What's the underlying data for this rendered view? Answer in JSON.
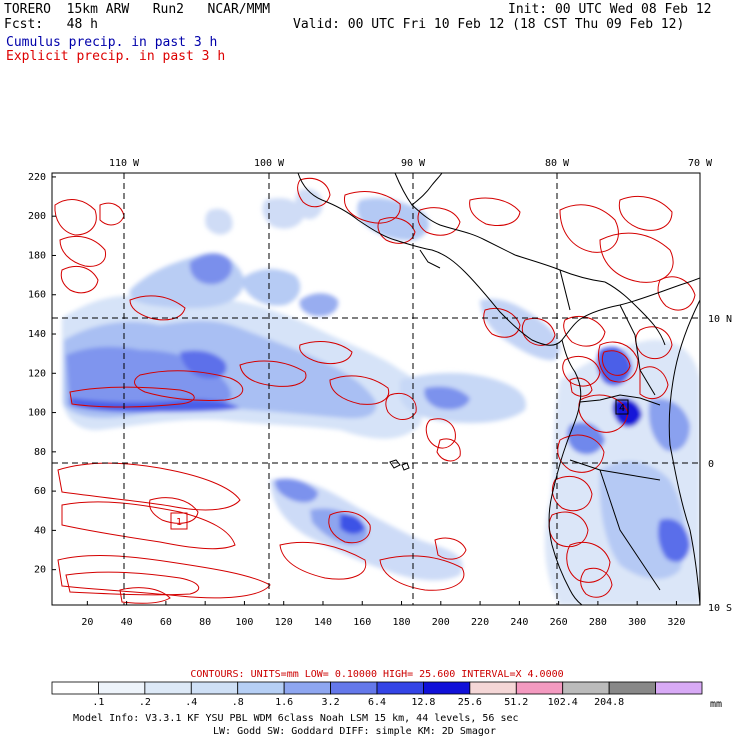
{
  "header": {
    "model_line": "TORERO  15km ARW   Run2   NCAR/MMM",
    "init_line": "Init: 00 UTC Wed 08 Feb 12",
    "fcst_line": "Fcst:   48 h",
    "valid_line": "Valid: 00 UTC Fri 10 Feb 12 (18 CST Thu 09 Feb 12)",
    "cumulus_label": "Cumulus precip. in past 3 h",
    "explicit_label": "Explicit precip. in past 3 h",
    "cumulus_color": "#0000aa",
    "explicit_color": "#dd0000"
  },
  "map": {
    "lon_labels": [
      "110 W",
      "100 W",
      "90 W",
      "80 W",
      "70 W"
    ],
    "lat_labels": [
      "10 N",
      "0",
      "10 S"
    ],
    "y_ticks": [
      "20",
      "40",
      "60",
      "80",
      "100",
      "120",
      "140",
      "160",
      "180",
      "200",
      "220"
    ],
    "x_ticks": [
      "20",
      "40",
      "60",
      "80",
      "100",
      "120",
      "140",
      "160",
      "180",
      "200",
      "220",
      "240",
      "260",
      "280",
      "300",
      "320"
    ],
    "grid_boxes": [
      "1",
      "4"
    ]
  },
  "contour_info": {
    "text": "CONTOURS:  UNITS=mm  LOW= 0.10000     HIGH=  25.600     INTERVAL=X  4.0000",
    "color": "#cc0000"
  },
  "colorbar": {
    "labels": [
      ".1",
      ".2",
      ".4",
      ".8",
      "1.6",
      "3.2",
      "6.4",
      "12.8",
      "25.6",
      "51.2",
      "102.4",
      "204.8"
    ],
    "unit": "mm",
    "colors": [
      "#ffffff",
      "#eef4fb",
      "#dde9f7",
      "#cfe0f6",
      "#b6cff5",
      "#8ea6f0",
      "#6478ea",
      "#3444e6",
      "#1010d8",
      "#f5d7d7",
      "#f49ac0",
      "#bbbbbb",
      "#888888",
      "#d8aaf6"
    ]
  },
  "footer": {
    "line1": "Model Info: V3.3.1    KF     YSU PBL  WDM 6class  Noah LSM  15 km,    44 levels,    56 sec",
    "line2": "LW: Godd SW: Goddard DIFF: simple KM: 2D Smagor"
  }
}
